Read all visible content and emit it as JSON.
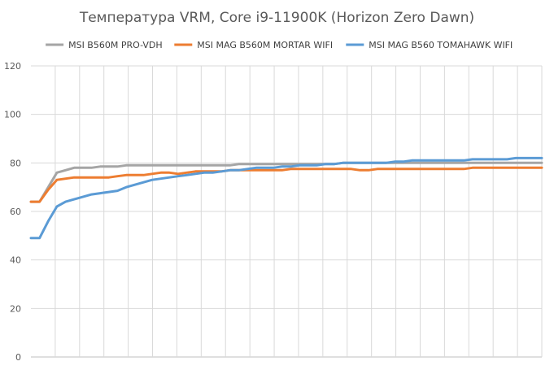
{
  "chart_data": {
    "type": "line",
    "title": "Температура VRM, Core i9-11900K (Horizon Zero Dawn)",
    "xlabel": "",
    "ylabel": "",
    "ylim": [
      0,
      120
    ],
    "yticks": [
      0,
      20,
      40,
      60,
      80,
      100,
      120
    ],
    "ytick_labels": [
      "0",
      "20",
      "40",
      "60",
      "80",
      "100",
      "120"
    ],
    "x_count": 60,
    "x_gridlines": true,
    "grid": true,
    "legend_position": "top",
    "series": [
      {
        "name": "MSI B560M PRO-VDH",
        "color": "#a5a5a5",
        "values": [
          64,
          64,
          70,
          76,
          77,
          78,
          78,
          78,
          78.5,
          78.5,
          78.5,
          79,
          79,
          79,
          79,
          79,
          79,
          79,
          79,
          79,
          79,
          79,
          79,
          79,
          79.5,
          79.5,
          79.5,
          79.5,
          79.5,
          79.5,
          79.5,
          79.5,
          79.5,
          79.5,
          79.5,
          79.5,
          80,
          80,
          80,
          80,
          80,
          80,
          80,
          80,
          80,
          80,
          80,
          80,
          80,
          80,
          80,
          80,
          80,
          80,
          80,
          80,
          80,
          80,
          80,
          80
        ]
      },
      {
        "name": "MSI MAG B560M MORTAR WIFI",
        "color": "#ed7d31",
        "values": [
          64,
          64,
          69,
          73,
          73.5,
          74,
          74,
          74,
          74,
          74,
          74.5,
          75,
          75,
          75,
          75.5,
          76,
          76,
          75.5,
          76,
          76.5,
          76.5,
          76.5,
          76.5,
          77,
          77,
          77,
          77,
          77,
          77,
          77,
          77.5,
          77.5,
          77.5,
          77.5,
          77.5,
          77.5,
          77.5,
          77.5,
          77,
          77,
          77.5,
          77.5,
          77.5,
          77.5,
          77.5,
          77.5,
          77.5,
          77.5,
          77.5,
          77.5,
          77.5,
          78,
          78,
          78,
          78,
          78,
          78,
          78,
          78,
          78
        ]
      },
      {
        "name": "MSI MAG B560 TOMAHAWK WIFI",
        "color": "#5b9bd5",
        "values": [
          49,
          49,
          56,
          62,
          64,
          65,
          66,
          67,
          67.5,
          68,
          68.5,
          70,
          71,
          72,
          73,
          73.5,
          74,
          74.5,
          75,
          75.5,
          76,
          76,
          76.5,
          77,
          77,
          77.5,
          78,
          78,
          78,
          78.5,
          78.5,
          79,
          79,
          79,
          79.5,
          79.5,
          80,
          80,
          80,
          80,
          80,
          80,
          80.5,
          80.5,
          81,
          81,
          81,
          81,
          81,
          81,
          81,
          81.5,
          81.5,
          81.5,
          81.5,
          81.5,
          82,
          82,
          82,
          82
        ]
      }
    ]
  }
}
